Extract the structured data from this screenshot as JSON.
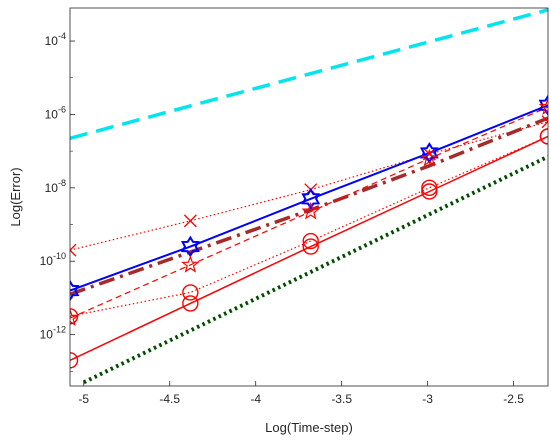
{
  "chart_data": {
    "type": "line",
    "title": "",
    "xlabel": "Log(Time-step)",
    "ylabel": "Log(Error)",
    "xlim": [
      -5.08,
      -2.3
    ],
    "ylim_log10": [
      -13.4,
      -3.1
    ],
    "y_scale": "log",
    "grid": false,
    "legend": "none",
    "x_ticks": [
      {
        "v": -5,
        "label": "-5"
      },
      {
        "v": -4.5,
        "label": "-4.5"
      },
      {
        "v": -4,
        "label": "-4"
      },
      {
        "v": -3.5,
        "label": "-3.5"
      },
      {
        "v": -3,
        "label": "-3"
      },
      {
        "v": -2.5,
        "label": "-2.5"
      }
    ],
    "y_ticks": [
      {
        "v": -4,
        "base": "10",
        "exp": "-4"
      },
      {
        "v": -6,
        "base": "10",
        "exp": "-6"
      },
      {
        "v": -8,
        "base": "10",
        "exp": "-8"
      },
      {
        "v": -10,
        "base": "10",
        "exp": "-10"
      },
      {
        "v": -12,
        "base": "10",
        "exp": "-12"
      }
    ],
    "series": [
      {
        "style": "dashed",
        "color": "#00e5ee",
        "width": 3.5,
        "marker": "none",
        "x": [
          -5.08,
          -2.3
        ],
        "log10_y": [
          -6.65,
          -3.15
        ]
      },
      {
        "style": "dotted",
        "color": "#ff0000",
        "width": 1.2,
        "marker": "x",
        "x": [
          -5.08,
          -4.38,
          -3.68,
          -2.99,
          -2.3
        ],
        "log10_y": [
          -9.7,
          -8.9,
          -8.05,
          -7.08,
          -6.2
        ]
      },
      {
        "style": "solid",
        "color": "#0000ff",
        "width": 2,
        "marker": "star6",
        "x": [
          -5.08,
          -4.38,
          -3.68,
          -2.99,
          -2.3
        ],
        "log10_y": [
          -10.8,
          -9.6,
          -8.3,
          -7.05,
          -5.75
        ]
      },
      {
        "style": "dashdot",
        "color": "#a52a2a",
        "width": 3.5,
        "marker": "none",
        "x": [
          -5.08,
          -4.38,
          -3.68,
          -2.99,
          -2.3
        ],
        "log10_y": [
          -10.9,
          -9.75,
          -8.6,
          -7.4,
          -6.1
        ]
      },
      {
        "style": "dashed",
        "color": "#ff0000",
        "width": 1.2,
        "marker": "pentagram",
        "x": [
          -5.08,
          -4.38,
          -3.68,
          -2.99,
          -2.3
        ],
        "log10_y": [
          -11.55,
          -10.1,
          -8.65,
          -7.2,
          -5.8
        ]
      },
      {
        "style": "dotted",
        "color": "#ff0000",
        "width": 1.2,
        "marker": "circle",
        "x": [
          -5.08,
          -4.38,
          -3.68,
          -2.99,
          -2.3
        ],
        "log10_y": [
          -11.5,
          -10.85,
          -9.45,
          -8.0,
          -6.6
        ]
      },
      {
        "style": "solid",
        "color": "#ff0000",
        "width": 1.5,
        "marker": "circle",
        "x": [
          -5.08,
          -4.38,
          -3.68,
          -2.99,
          -2.3
        ],
        "log10_y": [
          -12.7,
          -11.15,
          -9.6,
          -8.1,
          -6.6
        ]
      },
      {
        "style": "dotted",
        "color": "#004d00",
        "width": 4,
        "marker": "none",
        "x": [
          -5.0,
          -2.3
        ],
        "log10_y": [
          -13.3,
          -7.15
        ]
      }
    ]
  }
}
